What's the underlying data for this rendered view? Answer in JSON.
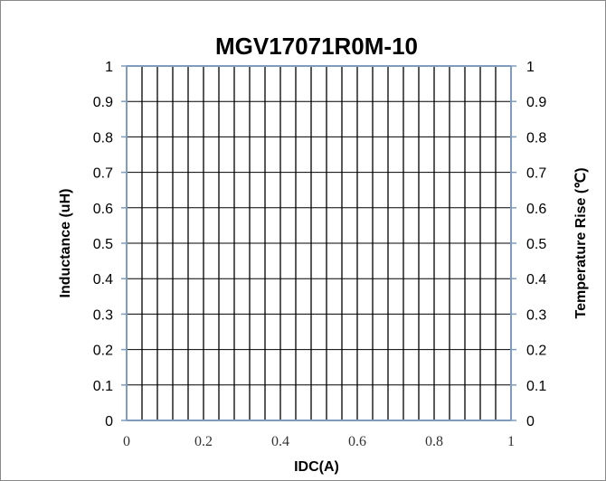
{
  "chart_data": {
    "type": "line",
    "title": "MGV17071R0M-10",
    "xlabel": "IDC(A)",
    "ylabel": "Inductance (uH)",
    "y2label": "Temperature Rise (℃)",
    "xlim": [
      0,
      1
    ],
    "ylim": [
      0,
      1
    ],
    "y2lim": [
      0,
      1
    ],
    "x_ticks": [
      "0",
      "0.2",
      "0.4",
      "0.6",
      "0.8",
      "1"
    ],
    "y_ticks": [
      "0",
      "0.1",
      "0.2",
      "0.3",
      "0.4",
      "0.5",
      "0.6",
      "0.7",
      "0.8",
      "0.9",
      "1"
    ],
    "y2_ticks": [
      "0",
      "0.1",
      "0.2",
      "0.3",
      "0.4",
      "0.5",
      "0.6",
      "0.7",
      "0.8",
      "0.9",
      "1"
    ],
    "grid": true,
    "series": [],
    "colors": {
      "axis": "#7f9bbd",
      "grid": "#000000"
    }
  }
}
